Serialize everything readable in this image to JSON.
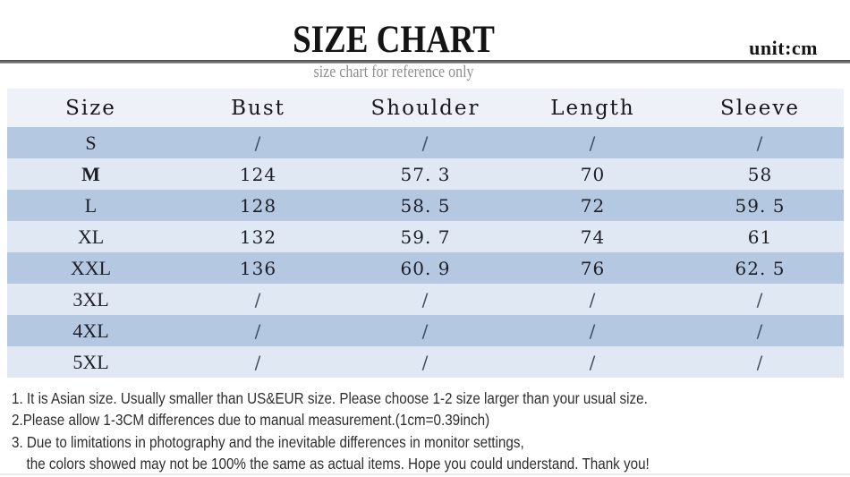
{
  "header": {
    "title": "SIZE CHART",
    "unit": "unit:cm",
    "subtitle": "size chart for reference only"
  },
  "chart_data": {
    "type": "table",
    "title": "SIZE CHART",
    "unit": "cm",
    "columns": [
      "Size",
      "Bust",
      "Shoulder",
      "Length",
      "Sleeve"
    ],
    "rows": [
      [
        "S",
        "/",
        "/",
        "/",
        "/"
      ],
      [
        "M",
        "124",
        "57. 3",
        "70",
        "58"
      ],
      [
        "L",
        "128",
        "58. 5",
        "72",
        "59. 5"
      ],
      [
        "XL",
        "132",
        "59. 7",
        "74",
        "61"
      ],
      [
        "XXL",
        "136",
        "60. 9",
        "76",
        "62. 5"
      ],
      [
        "3XL",
        "/",
        "/",
        "/",
        "/"
      ],
      [
        "4XL",
        "/",
        "/",
        "/",
        "/"
      ],
      [
        "5XL",
        "/",
        "/",
        "/",
        "/"
      ]
    ]
  },
  "notes": {
    "lines": [
      {
        "text": "1. It is Asian size.  Usually smaller than US&EUR size. Please choose 1-2 size larger than your usual size.",
        "indent": false
      },
      {
        "text": "2.Please allow 1-3CM differences due to manual measurement.(1cm=0.39inch)",
        "indent": false
      },
      {
        "text": "3. Due to limitations in photography and the inevitable differences in monitor settings,",
        "indent": false
      },
      {
        "text": "the colors showed may not be 100% the same as actual items. Hope you could understand. Thank you!",
        "indent": true
      }
    ]
  },
  "colors": {
    "row_dark": "#b4c9e1",
    "row_light": "#e0e9f3",
    "header_row": "#eef2f8",
    "rule": "#5a5a5a",
    "subtitle_text": "#8e8e8e",
    "text": "#1e1e26"
  }
}
